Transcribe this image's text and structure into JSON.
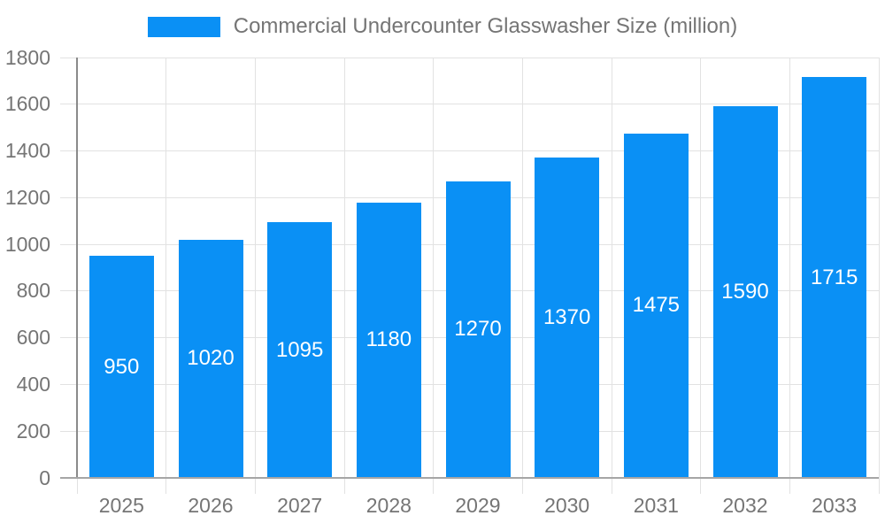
{
  "legend": {
    "label": "Commercial Undercounter Glasswasher Size (million)"
  },
  "colors": {
    "bar": "#0a90f5",
    "legend_text": "#757575",
    "axis_label": "#757575",
    "bar_label": "#ffffff",
    "grid": "#e2e2e2",
    "y_axis_line": "#8a8a8a",
    "x_axis_line": "#a6a6a6",
    "background": "#ffffff"
  },
  "chart_data": {
    "type": "bar",
    "title": "Commercial Undercounter Glasswasher Size (million)",
    "categories": [
      "2025",
      "2026",
      "2027",
      "2028",
      "2029",
      "2030",
      "2031",
      "2032",
      "2033"
    ],
    "values": [
      950,
      1020,
      1095,
      1180,
      1270,
      1370,
      1475,
      1590,
      1715
    ],
    "xlabel": "",
    "ylabel": "",
    "ylim": [
      0,
      1800
    ],
    "ytick_step": 200,
    "grid": true,
    "legend_position": "top",
    "bar_value_labels": true
  }
}
